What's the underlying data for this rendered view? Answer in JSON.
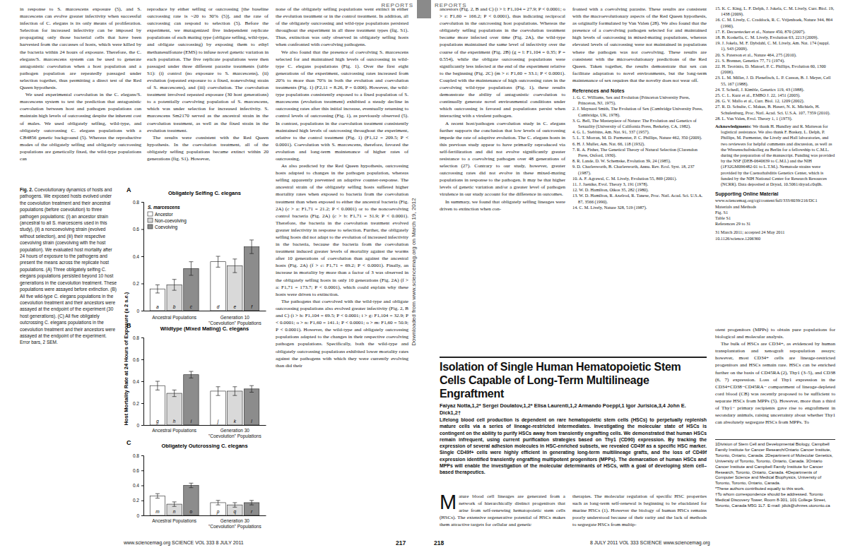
{
  "chart_data": [
    {
      "type": "bar",
      "title": "Obligately Selfing C. elegans",
      "ylabel": "Host Mortality Rate at 24 Hours of Exposure (± 2 s.e.)",
      "categories": [
        "Ancestral Populations",
        "Generation 10\n\"Coevolution\" Populations"
      ],
      "series": [
        {
          "name": "Ancestor",
          "color": "#ffffff",
          "values": [
            0.16,
            0.36
          ],
          "errors": [
            0.03,
            0.04
          ],
          "letters": [
            "a",
            "d"
          ]
        },
        {
          "name": "Non-coevolving",
          "color": "#d9d9d9",
          "values": [
            0.19,
            0.33
          ],
          "errors": [
            0.04,
            0.05
          ],
          "letters": [
            "b",
            "e"
          ]
        },
        {
          "name": "Coevolving",
          "color": "#8c8c8c",
          "values": [
            0.31,
            0.47
          ],
          "errors": [
            0.05,
            0.05
          ],
          "letters": [
            "c",
            "f"
          ]
        }
      ],
      "ylim": [
        0,
        0.8
      ],
      "yticks": [
        0,
        0.2,
        0.4,
        0.6,
        0.8
      ],
      "grid": false,
      "legend": "top-left",
      "legend_title": "S. marcescens"
    },
    {
      "type": "bar",
      "title": "Wildtype (Mixed Mating) C. elegans",
      "categories": [
        "Ancestral Populations",
        "Generation 30\n\"Coevolution\" Populations"
      ],
      "series": [
        {
          "color": "#ffffff",
          "values": [
            0.36,
            0.31
          ],
          "errors": [
            0.04,
            0.04
          ],
          "letters": [
            "g",
            "j"
          ]
        },
        {
          "color": "#d9d9d9",
          "values": [
            0.29,
            0.31
          ],
          "errors": [
            0.03,
            0.04
          ],
          "letters": [
            "h",
            "k"
          ]
        },
        {
          "color": "#8c8c8c",
          "values": [
            0.46,
            0.33
          ],
          "errors": [
            0.03,
            0.03
          ],
          "letters": [
            "i",
            "l"
          ]
        }
      ],
      "ylim": [
        0,
        0.8
      ],
      "yticks": [
        0,
        0.2,
        0.4,
        0.6,
        0.8
      ],
      "grid": false
    },
    {
      "type": "bar",
      "title": "Obligately Outcrossing C. elegans",
      "categories": [
        "Ancestral Populations",
        "Generation 30\n\"Coevolution\" Populations"
      ],
      "series": [
        {
          "color": "#ffffff",
          "values": [
            0.26,
            0.17
          ],
          "errors": [
            0.03,
            0.03
          ],
          "letters": [
            "m",
            "p"
          ]
        },
        {
          "color": "#d9d9d9",
          "values": [
            0.15,
            0.14
          ],
          "errors": [
            0.03,
            0.03
          ],
          "letters": [
            "n",
            "q"
          ]
        },
        {
          "color": "#8c8c8c",
          "values": [
            0.4,
            0.17
          ],
          "errors": [
            0.03,
            0.03
          ],
          "letters": [
            "o",
            "r"
          ]
        }
      ],
      "ylim": [
        0,
        0.8
      ],
      "yticks": [
        0,
        0.2,
        0.4,
        0.6,
        0.8
      ],
      "grid": false
    }
  ],
  "header": {
    "left": "REPORTS",
    "right": "REPORTS"
  },
  "footer": {
    "left": "www.sciencemag.org SCIENCE VOL 333 8 JULY 2011",
    "left_page": "217",
    "right_page": "218",
    "right": "8 JULY 2011 VOL 333 SCIENCE www.sciencemag.org"
  },
  "side_note": "Downloaded from www.sciencemag.org on March 19, 2012",
  "caption": {
    "label": "Fig. 2.",
    "text": "Coevolutionary dynamics of hosts and pathogens. We exposed hosts evolved under the coevolution treatment and their ancestral populations (before coevolution) to three pathogen populations: (i) an ancestor strain (ancestral to all S. marcescens used in this study), (ii) a noncoevolving strain (evolved without selection), and (iii) their respective coevolving strain (coevolving with the host population). We evaluated host mortality after 24 hours of exposure to the pathogens and present the means across the replicate host populations. (A) Three obligately selfing C. elegans populations persisted beyond 10 host generations in the coevolution treatment. These populations were assayed before extinction. (B) All five wild-type C. elegans populations in the coevolution treatment and their ancestors were assayed at the endpoint of the experiment (30 host generations). (C) All five obligately outcrossing C. elegans populations in the coevolution treatment and their ancestors were assayed at the endpoint of the experiment. Error bars, 2 SEM."
  },
  "columns": [
    {
      "paragraphs": [
        "in response to S. marcescens exposure (5), and S. marcescens can evolve greater infectivity when successful infection of C. elegans is its only means of proliferation. Selection for increased infectivity can be imposed by propagating only those bacterial cells that have been harvested from the carcasses of hosts, which were killed by the bacteria within 24 hours of exposure. Therefore, the C. elegans/S. marcescens system can be used to generate antagonistic coevolution when a host population and a pathogen population are repeatedly passaged under selection together, thus permitting a direct test of the Red Queen hypothesis.",
        "We used experimental coevolution in the C. elegans/S. marcescens system to test the prediction that antagonistic coevolution between host and pathogen populations can maintain high levels of outcrossing despite the inherent cost of males. We used obligately selfing, wild-type, and obligately outcrossing C. elegans populations with a CB4856 genetic background (5). Whereas the reproductive modes of the obligately selfing and obligately outcrossing populations are genetically fixed, the wild-type populations can"
      ]
    },
    {
      "paragraphs": [
        "reproduce by either selfing or outcrossing [the baseline outcrossing rate is ~20 to 30% (5)], and the rate of outcrossing can respond to selection (5). Before the experiment, we mutagenized five independent replicate populations of each mating type (obligate selfing, wild-type, and obligate outcrossing) by exposing them to ethyl methanesulfonate (EMS) to infuse novel genetic variation in each population. The five replicate populations were then passaged under three different parasite treatments (table S1): (i) control (no exposure to S. marcescens), (ii) evolution (repeated exposure to a fixed, nonevolving strain of S. marcescens), and (iii) coevolution. The coevolution treatment involved repeated exposure (30 host generations) to a potentially coevolving population of S. marcescens, which was under selection for increased infectivity. S. marcescens Sm2170 served as the ancestral strain in the coevolution treatment, as well as the fixed strain in the evolution treatment.",
        "The results were consistent with the Red Queen hypothesis. In the coevolution treatment, all of the obligately selfing populations became extinct within 20 generations (fig. S1). However,"
      ]
    },
    {
      "paragraphs": [
        "none of the obligately selfing populations went extinct in either the evolution treatment or in the control treatment. In addition, all of the obligately outcrossing and wild-type populations persisted throughout the experiment in all three treatment types (fig. S1). Thus, extinction was only observed in obligately selfing hosts when confronted with coevolving pathogens.",
        "We also found that the presence of coevolving S. marcescens selected for and maintained high levels of outcrossing in wild-type C. elegans populations (Fig. 1). Over the first eight generations of the experiment, outcrossing rates increased from 20% to more than 70% in both the evolution and coevolution treatments (Fig. 1) (F2,11 = 8.26, P = 0.006). However, the wild-type populations consistently exposed to a fixed population of S. marcescens (evolution treatment) exhibited a steady decline in outcrossing rates after this initial increase, eventually returning to control levels of outcrossing (Fig. 1), as previously observed (5). In contrast, populations in the coevolution treatment consistently maintained high levels of outcrossing throughout the experiment, relative to the control treatment (Fig. 1) (F1,12 = 209.5; P < 0.0001). Coevolution with S. marcescens, therefore, favored the evolution and long-term maintenance of higher rates of outcrossing.",
        "As also predicted by the Red Queen hypothesis, outcrossing hosts adapted to changes in the pathogen population, whereas selfing apparently prevented an adaptive counter-response. The ancestral strain of the obligately selfing hosts suffered higher mortality rates when exposed to bacteria from the coevolution treatment than when exposed to either the ancestral bacteria (Fig. 2A) (c > a: F1,71 = 21.2; P < 0.0001) or to the noncoevolving control bacteria (Fig. 2A) (c > b: F1,71 = 31.9; P < 0.0001). Therefore, the bacteria in the coevolution treatment evolved greater infectivity in response to selection. Further, the obligately selfing hosts did not adapt to the evolution of increased infectivity in the bacteria, because the bacteria from the coevolution treatment induced greater levels of mortality against the worms after 10 generations of coevolution than against the ancestral hosts (Fig. 2A) (f > c: F1,71 = 69.2; P < 0.0001). Finally, an increase in mortality by more than a factor of 3 was observed in the obligately selfing hosts in only 10 generations (Fig. 2A) (f > a: F1,71 = 173.7; P < 0.0001), which could explain why these hosts were driven to extinction.",
        "The pathogens that coevolved with the wild-type and obligate outcrossing populations also evolved greater infectivity (Fig. 2, B and C) (i > h: F1,104 = 69.5; P < 0.0001; i > g: F1,104 = 32.9; P < 0.0001; o > n: F1,60 = 141.1; P < 0.0001; o > m: F1,60 = 50.9; P < 0.0001). However, the wild-type and obligately outcrossing populations adapted to the changes in their respective coevolving pathogen populations. Specifically, both the wild-type and obligately outcrossing populations exhibited lower mortality rates against the pathogens with which they were currently evolving than did their"
      ]
    },
    {
      "paragraphs": [
        "ancestors (Fig. 2, B and C) (i > l: F1,104 = 27.9; P < 0.0001; o > r: F1,60 = 166.2; P < 0.0001), thus indicating reciprocal coevolution in the outcrossing host populations. Whereas the obligately selfing populations in the coevolution treatment became more infected over time (Fig. 2A), the wild-type populations maintained the same level of infectivity over the course of the experiment (Fig. 2B) (g = l: F1,104 = 0.35; P = 0.554), while the obligate outcrossing populations were significantly less infected at the end of the experiment relative to the beginning (Fig. 2C) (m > r: F1,60 = 33.1; P < 0.0001). Coupled with the maintenance of high outcrossing rates in the coevolving wild-type populations (Fig. 1), these results demonstrate the ability of antagonistic coevolution to continually generate novel environmental conditions under which outcrossing is favored and populations persist when interacting with a virulent pathogen.",
        "A recent host/pathogen coevolution study in C. elegans further supports the conclusion that low levels of outcrossing impede the rate of adaptive evolution. The C. elegans hosts in this previous study appear to have primarily reproduced via self-fertilization and did not evolve significantly greater resistance to a coevolving pathogen over 48 generations of selection (27). Contrary to our study, however, greater outcrossing rates did not evolve in these mixed-mating populations in response to the pathogen. It may be that higher levels of genetic variation and/or a greater level of pathogen virulence in our study account for the difference in outcomes.",
        "In summary, we found that obligately selfing lineages were driven to extinction when con-"
      ]
    },
    {
      "paragraphs": [
        "fronted with a coevolving parasite. These results are consistent with the macroevolutionary aspects of the Red Queen hypothesis, as originally formulated by Van Valen (28). We also found that the presence of a coevolving pathogen selected for and maintained high levels of outcrossing in mixed-mating populations, whereas elevated levels of outcrossing were not maintained in populations where the pathogen was not coevolving. These results are consistent with the microevolutionary predictions of the Red Queen. Taken together, the results demonstrate that sex can facilitate adaptation to novel environments, but the long-term maintenance of sex requires that the novelty does not wear off."
      ]
    }
  ],
  "references": {
    "heading": "References and Notes",
    "items": [
      "1. G. C. Williams, Sex and Evolution (Princeton University Press, Princeton, NJ, 1975).",
      "2. J. Maynard Smith, The Evolution of Sex (Cambridge University Press, Cambridge, UK, 1978).",
      "3. G. Bell, The Masterpiece of Nature: The Evolution and Genetics of Sexuality (University of California Press, Berkeley, CA, 1982).",
      "4. G. L. Stebbins, Am. Nat. 91, 337 (1957).",
      "5. L. T. Morran, M. D. Parmenter, P. C. Phillips, Nature 462, 350 (2009).",
      "6. H. J. Muller, Am. Nat. 66, 118 (1932).",
      "7. R. A. Fisher, The Genetical Theory of Natural Selection (Clarendon Press, Oxford, 1930).",
      "8. R. Lande, D. W. Schemske, Evolution 39, 24 (1985).",
      "9. D. Charlesworth, B. Charlesworth, Annu. Rev. Ecol. Syst. 18, 237 (1987).",
      "10. A. F. Agrawal, C. M. Lively, Evolution 55, 869 (2001).",
      "11. J. Jaenike, Evol. Theory 3, 191 (1978).",
      "12. W. D. Hamilton, Oikos 35, 282 (1980).",
      "13. W. D. Hamilton, R. Axelrod, R. Tanese, Proc. Natl. Acad. Sci. U.S.A. 87, 3566 (1990).",
      "14. C. M. Lively, Nature 328, 519 (1987).",
      "15. K. C. King, L. F. Delph, J. Jokela, C. M. Lively, Curr. Biol. 19, 1438 (2009).",
      "16. C. M. Lively, C. Craddock, R. C. Vrijenhoek, Nature 344, 864 (1990).",
      "17. E. Decaestecker et al., Nature 450, 870 (2007).",
      "18. B. Koskella, C. M. Lively, Evolution 63, 2213 (2009).",
      "19. J. Jokela, M. F. Dybdahl, C. M. Lively, Am. Nat. 174 (suppl. 1), S43 (2009).",
      "20. S. Paterson et al., Nature 464, 275 (2010).",
      "21. S. Brenner, Genetics 77, 71 (1974).",
      "22. H. Teotónio, D. Manoel, P. C. Phillips, Evolution 60, 1300 (2006).",
      "23. L. M. Miller, J. D. Plenefisch, L. P. Casson, B. J. Meyer, Cell 55, 167 (1988).",
      "24. T. Schedl, J. Kimble, Genetics 119, 43 (1988).",
      "25. C. L. Kurz et al., EMBO J. 22, 1451 (2003).",
      "26. G. V. Mallo et al., Curr. Biol. 12, 1209 (2002).",
      "27. R. D. Schulte, C. Makus, B. Hasert, N. K. Michiels, H. Schulenburg, Proc. Natl. Acad. Sci. U.S.A. 107, 7359 (2010).",
      "28. L. Van Valen, Evol. Theory 1, 1 (1973)."
    ]
  },
  "acknowledgments": {
    "label": "Acknowledgments:",
    "text": "We thank H. Hundley and R. Matteson for logistical assistance. We also thank F. Baskey, L. Delph, P. Phillips, M. Parmenter, the Lively and Hall laboratories, and two reviewers for helpful comments and discussion, as well as the Wissenschaftskolleg zu Berlin for a fellowship to C.M.L. during the preparation of the manuscript. Funding was provided by the NSF (DEB-0640639 to C.M.L) and the NIH (1F32GM096482-01 to L.T.M.). Nematode strains were provided by the Caenorhabditis Genetics Center, which is funded by the NIH National Center for Research Resources (NCRR). Data deposited at Dryad, 10.5061/dryad.c0q0h."
  },
  "supporting": {
    "heading": "Supporting Online Material",
    "lines": [
      "www.sciencemag.org/cgi/content/full/333/6039/216/DC1",
      "Materials and Methods",
      "Fig. S1",
      "Table S1",
      "References 29 to 31"
    ]
  },
  "dates": [
    "31 March 2011; accepted 24 May 2011",
    "10.1126/science.1206360"
  ],
  "article": {
    "title": "Isolation of Single Human Hematopoietic Stem Cells Capable of Long-Term Multilineage Engraftment",
    "authors": "Faiyaz Notta,1,2* Sergei Doulatov,1,2* Elisa Laurenti,1,2 Armando Poeppl,1 Igor Jurisica,3,4 John E. Dick1,2†",
    "abstract": "Lifelong blood cell production is dependent on rare hematopoietic stem cells (HSCs) to perpetually replenish mature cells via a series of lineage-restricted intermediates. Investigating the molecular state of HSCs is contingent on the ability to purify HSCs away from transiently engrafting cells. We demonstrated that human HSCs remain infrequent, using current purification strategies based on Thy1 (CD90) expression. By tracking the expression of several adhesion molecules in HSC-enriched subsets, we revealed CD49f as a specific HSC marker. Single CD49f+ cells were highly efficient in generating long-term multilineage grafts, and the loss of CD49f expression identified transiently engrafting multipotent progenitors (MPPs). The demarcation of human HSCs and MPPs will enable the investigation of the molecular determinants of HSCs, with a goal of developing stem cell–based therapeutics.",
    "columns": [
      {
        "paragraphs": [
          "Mature blood cell lineages are generated from a network of hierarchically distinct progenitors that arise from self-renewing hematopoietic stem cells (HSCs). The extensive regenerative potential of HSCs makes them attractive targets for cellular and genetic"
        ]
      },
      {
        "paragraphs": [
          "therapies. The molecular regulation of specific HSC properties such as long-term self-renewal is beginning to be elucidated for murine HSCs (1). However the biology of human HSCs remains poorly understood because of their rarity and the lack of methods to segregate HSCs from multip-"
        ]
      },
      {
        "paragraphs": [
          "otent progenitors (MPPs) to obtain pure populations for biological and molecular analysis.",
          "The bulk of HSCs are CD34+, as evidenced by human transplantation and xenograft repopulation assays; however, most CD34+ cells are lineage-restricted progenitors and HSCs remain rare. HSCs can be enriched further on the basis of CD45RA (2), Thy1 (3–5), and CD38 (6, 7) expression. Loss of Thy1 expression in the CD34+CD38−CD45RA− compartment of lineage-depleted cord blood (CB) was recently proposed to be sufficient to separate HSCs from MPPs (5). However, more than a third of Thy1− primary recipients gave rise to engraftment in secondary animals, raising uncertainty about whether Thy1 can absolutely segregate HSCs from MPPs. To"
        ]
      }
    ],
    "affiliations": [
      "1Division of Stem Cell and Developmental Biology, Campbell Family Institute for Cancer Research/Ontario Cancer Institute, Toronto, Ontario, Canada. 2Department of Molecular Genetics, University of Toronto, Toronto, Ontario, Canada. 3Ontario Cancer Institute and Campbell Family Institute for Cancer Research, Toronto, Ontario, Canada. 4Departments of Computer Science and Medical Biophysics, University of Toronto, Toronto, Ontario, Canada.",
      "*These authors contributed equally to this work.",
      "†To whom correspondence should be addressed. Toronto Medical Discovery Tower, Room 8-301, 101 College Street, Toronto, Canada M5G 1L7. E-mail: jdick@uhnres.utoronto.ca"
    ]
  }
}
